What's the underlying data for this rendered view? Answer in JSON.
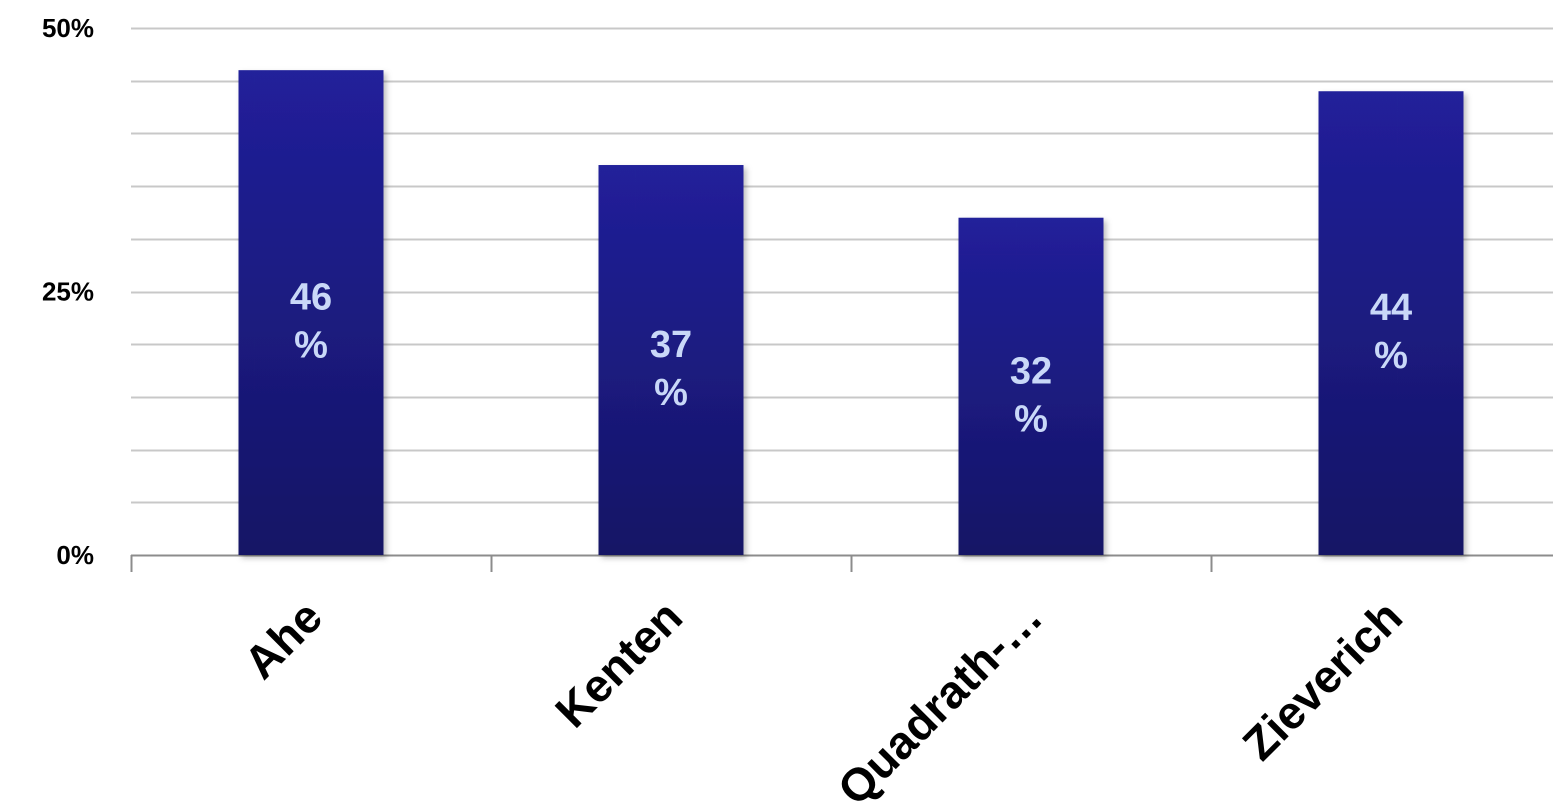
{
  "chart_data": {
    "type": "bar",
    "categories": [
      "Ahe",
      "Kenten",
      "Quadrath-…",
      "Zieverich"
    ],
    "values": [
      46,
      37,
      32,
      44
    ],
    "data_labels": [
      {
        "number": "46",
        "unit": "%"
      },
      {
        "number": "37",
        "unit": "%"
      },
      {
        "number": "32",
        "unit": "%"
      },
      {
        "number": "44",
        "unit": "%"
      }
    ],
    "yticks": [
      {
        "value": 0,
        "label": "0%"
      },
      {
        "value": 25,
        "label": "25%"
      },
      {
        "value": 50,
        "label": "50%"
      }
    ],
    "ylim": [
      0,
      50
    ],
    "minor_grid_step": 5,
    "grid": true,
    "legend": "none",
    "title": "",
    "xlabel": "",
    "ylabel": "",
    "colors": {
      "bar_top": "#21209a",
      "bar_bottom": "#151565",
      "data_label": "#c9d8f8",
      "grid": "#c8c8c8",
      "axis": "#8c8c8c"
    }
  }
}
